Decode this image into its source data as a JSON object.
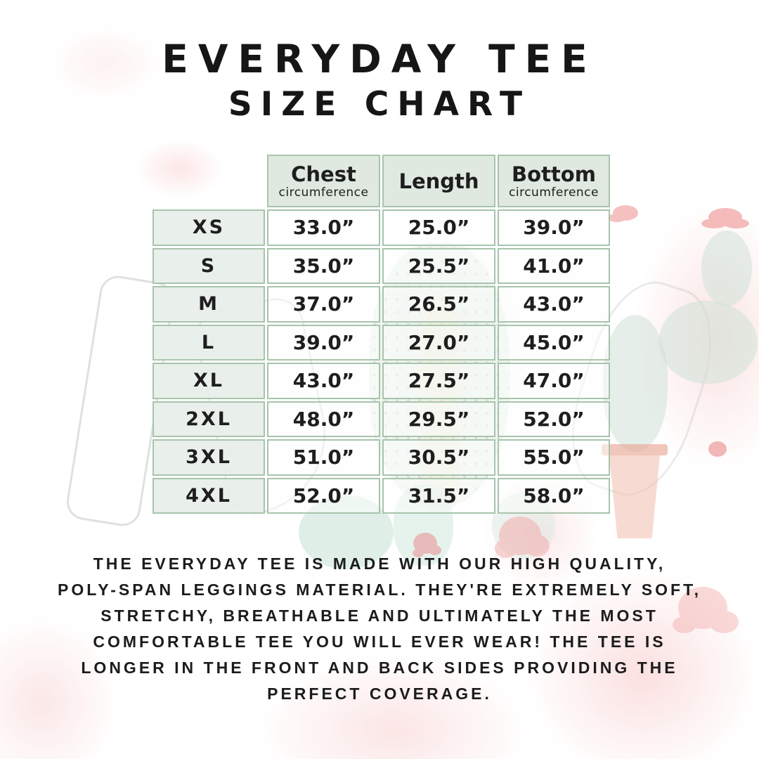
{
  "title": {
    "line1": "EVERYDAY TEE",
    "line2": "SIZE CHART"
  },
  "table": {
    "columns": [
      {
        "label": "Chest",
        "sublabel": "circumference"
      },
      {
        "label": "Length",
        "sublabel": ""
      },
      {
        "label": "Bottom",
        "sublabel": "circumference"
      }
    ],
    "rows": [
      {
        "size": "XS",
        "chest": "33.0”",
        "length": "25.0”",
        "bottom": "39.0”"
      },
      {
        "size": "S",
        "chest": "35.0”",
        "length": "25.5”",
        "bottom": "41.0”"
      },
      {
        "size": "M",
        "chest": "37.0”",
        "length": "26.5”",
        "bottom": "43.0”"
      },
      {
        "size": "L",
        "chest": "39.0”",
        "length": "27.0”",
        "bottom": "45.0”"
      },
      {
        "size": "XL",
        "chest": "43.0”",
        "length": "27.5”",
        "bottom": "47.0”"
      },
      {
        "size": "2XL",
        "chest": "48.0”",
        "length": "29.5”",
        "bottom": "52.0”"
      },
      {
        "size": "3XL",
        "chest": "51.0”",
        "length": "30.5”",
        "bottom": "55.0”"
      },
      {
        "size": "4XL",
        "chest": "52.0”",
        "length": "31.5”",
        "bottom": "58.0”"
      }
    ]
  },
  "description": {
    "lines": [
      "THE EVERYDAY TEE IS MADE WITH OUR HIGH QUALITY,",
      "POLY-SPAN LEGGINGS MATERIAL. THEY'RE EXTREMELY SOFT,",
      "STRETCHY, BREATHABLE AND ULTIMATELY THE MOST",
      "COMFORTABLE TEE YOU WILL EVER WEAR! THE TEE IS",
      "LONGER IN THE FRONT AND BACK SIDES PROVIDING THE",
      "PERFECT COVERAGE."
    ]
  },
  "colors": {
    "table_border": "#a8c4ac",
    "header_bg": "#dfe9e0",
    "size_col_bg": "#e8eee9",
    "text": "#1e1e1e",
    "watermark_mint": "#d4e3d8",
    "watermark_pink": "#f2a6a6",
    "watermark_terracotta": "#f1c3b6"
  }
}
